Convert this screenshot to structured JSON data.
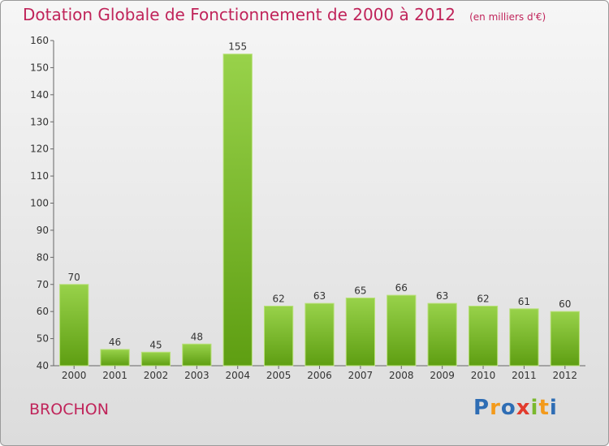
{
  "chart_data": {
    "type": "bar",
    "title": "Dotation Globale de Fonctionnement de 2000 à 2012",
    "unit_note": "(en milliers d'€)",
    "categories": [
      "2000",
      "2001",
      "2002",
      "2003",
      "2004",
      "2005",
      "2006",
      "2007",
      "2008",
      "2009",
      "2010",
      "2011",
      "2012"
    ],
    "values": [
      70,
      46,
      45,
      48,
      155,
      62,
      63,
      65,
      66,
      63,
      62,
      61,
      60
    ],
    "value_labels": [
      "70",
      "46",
      "45",
      "48",
      "155",
      "62",
      "63",
      "65",
      "66",
      "63",
      "62",
      "61",
      "60"
    ],
    "yticks": [
      "40",
      "50",
      "60",
      "70",
      "80",
      "90",
      "100",
      "110",
      "120",
      "130",
      "140",
      "150",
      "160"
    ],
    "ylim": [
      40,
      160
    ],
    "grid": false,
    "bar_color": "#7fbe2e",
    "accent_color": "#c0245a"
  },
  "commune": "BROCHON",
  "logo": {
    "letters": [
      "P",
      "r",
      "o",
      "x",
      "i",
      "t",
      "i"
    ],
    "colors": [
      "#2e6db4",
      "#f39a1b",
      "#2e6db4",
      "#e23b2d",
      "#7ab82e",
      "#f39a1b",
      "#2e6db4"
    ]
  }
}
